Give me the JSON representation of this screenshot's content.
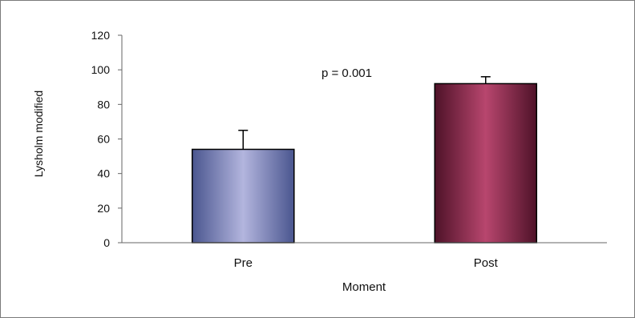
{
  "chart_data": {
    "type": "bar",
    "title": "",
    "xlabel": "Moment",
    "ylabel": "Lysholm modified",
    "categories": [
      "Pre",
      "Post"
    ],
    "values": [
      54,
      92
    ],
    "error_upper": [
      11,
      4
    ],
    "ylim": [
      0,
      120
    ],
    "yticks": [
      "0",
      "20",
      "40",
      "60",
      "80",
      "100",
      "120"
    ],
    "annotation": "p = 0.001",
    "grid": false,
    "legend": "none",
    "colors": {
      "pre_edge": "#4a568f",
      "pre_mid": "#b3b5de",
      "post_edge": "#4e1228",
      "post_mid": "#b8466e",
      "axis": "#666666"
    }
  }
}
